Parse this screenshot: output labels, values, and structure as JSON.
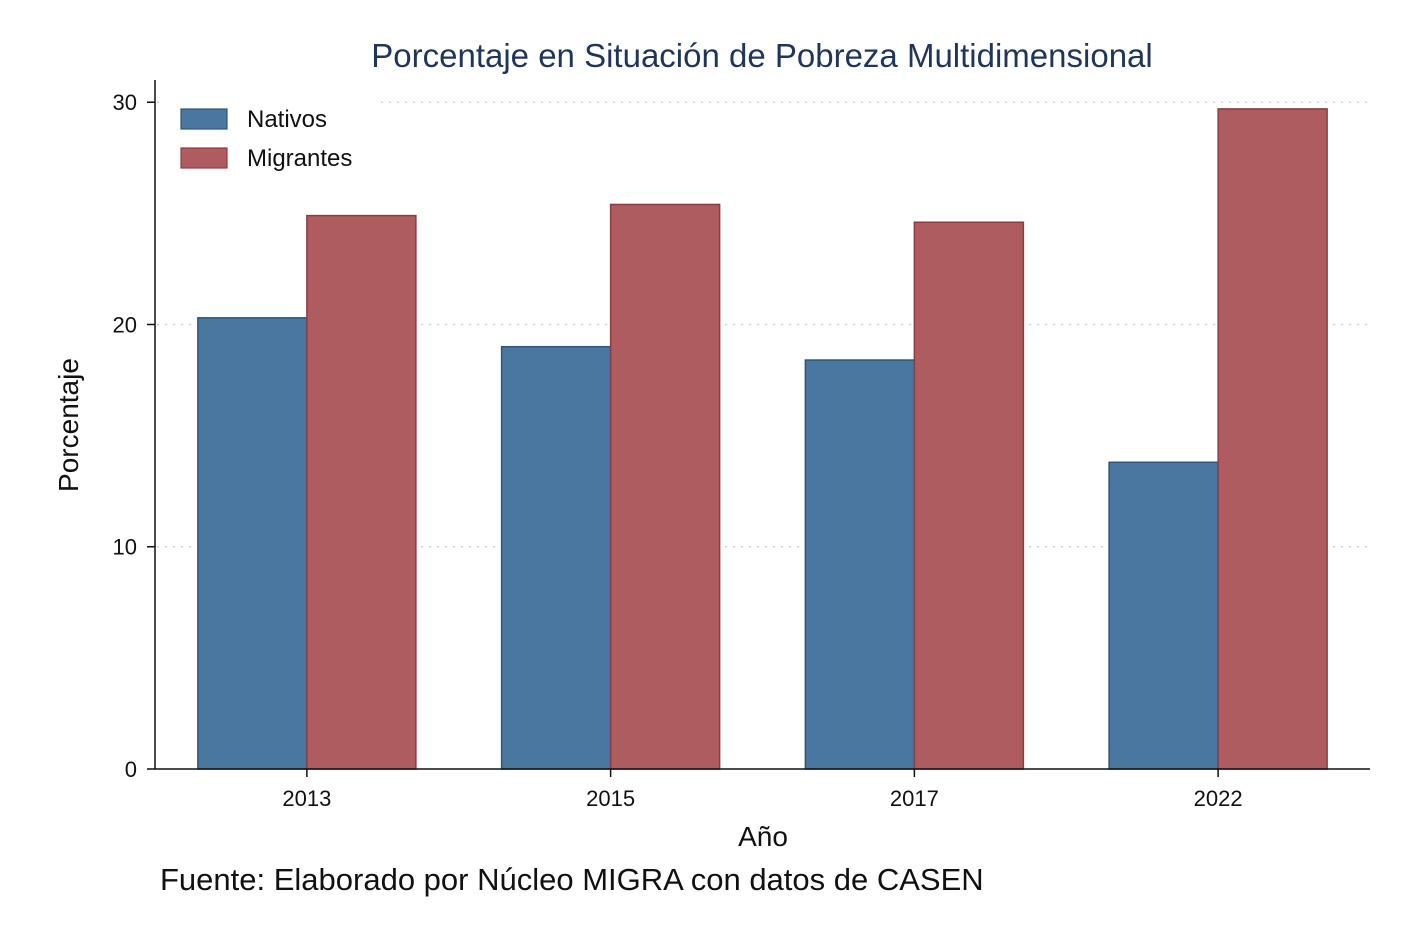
{
  "chart_data": {
    "type": "bar",
    "title": "Porcentaje en Situación de Pobreza Multidimensional",
    "xlabel": "Año",
    "ylabel": "Porcentaje",
    "categories": [
      "2013",
      "2015",
      "2017",
      "2022"
    ],
    "series": [
      {
        "name": "Nativos",
        "values": [
          20.3,
          19.0,
          18.4,
          13.8
        ],
        "color": "#4a77a0"
      },
      {
        "name": "Migrantes",
        "values": [
          24.9,
          25.4,
          24.6,
          29.7
        ],
        "color": "#ae5c5f"
      }
    ],
    "ylim": [
      0,
      31
    ],
    "yticks": [
      0,
      10,
      20,
      30
    ],
    "grid": true,
    "legend_position": "top-left",
    "source": "Fuente: Elaborado por Núcleo MIGRA con datos de CASEN"
  }
}
